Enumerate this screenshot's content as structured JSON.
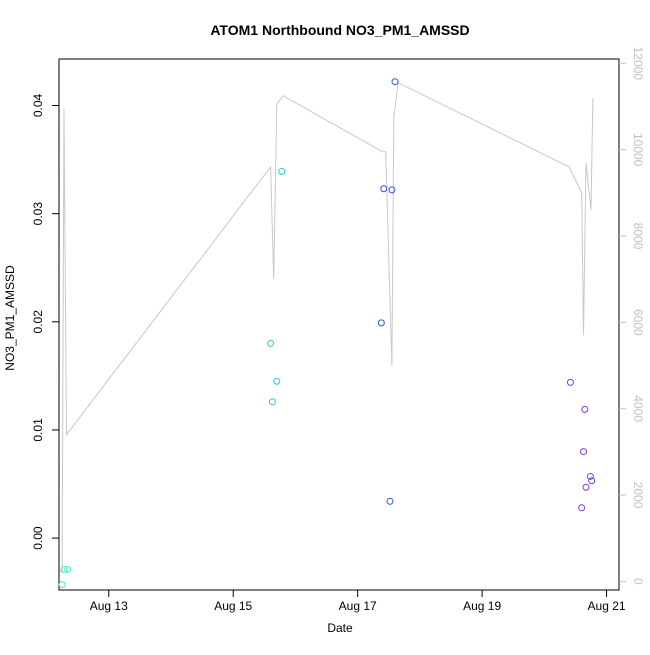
{
  "chart_data": {
    "type": "scatter",
    "title": "ATOM1 Northbound NO3_PM1_AMSSD",
    "xlabel": "Date",
    "ylabel": "NO3_PM1_AMSSD",
    "x_ticks": [
      "Aug 13",
      "Aug 15",
      "Aug 17",
      "Aug 19",
      "Aug 21"
    ],
    "x_tick_values": [
      13,
      15,
      17,
      19,
      21
    ],
    "xlim": [
      12.2,
      21.2
    ],
    "y_ticks": [
      "0.00",
      "0.01",
      "0.02",
      "0.03",
      "0.04"
    ],
    "y_tick_values": [
      0,
      0.01,
      0.02,
      0.03,
      0.04
    ],
    "ylim": [
      -0.0048,
      0.0443
    ],
    "y2_ticks": [
      "0",
      "2000",
      "4000",
      "6000",
      "8000",
      "10000",
      "12000"
    ],
    "y2_tick_values": [
      0,
      2000,
      4000,
      6000,
      8000,
      10000,
      12000
    ],
    "y2lim": [
      -200,
      12100
    ],
    "colors": {
      "line": "#c8c8c8",
      "axis": "#000000",
      "axis2": "#c0c0c0"
    },
    "series": [
      {
        "color": "#44e8c8",
        "points": [
          [
            12.25,
            -0.0043
          ],
          [
            12.28,
            -0.0029
          ],
          [
            12.34,
            -0.0029
          ]
        ]
      },
      {
        "color": "#28c8e8",
        "points": [
          [
            15.6,
            0.018
          ],
          [
            15.63,
            0.0126
          ],
          [
            15.7,
            0.0145
          ],
          [
            15.78,
            0.0339
          ]
        ]
      },
      {
        "color": "#2856e0",
        "points": [
          [
            17.38,
            0.0199
          ],
          [
            17.42,
            0.0323
          ],
          [
            17.52,
            0.0034
          ],
          [
            17.55,
            0.0322
          ],
          [
            17.6,
            0.0422
          ]
        ]
      },
      {
        "color": "#7a3ce0",
        "points": [
          [
            20.42,
            0.0144
          ],
          [
            20.6,
            0.0028
          ],
          [
            20.63,
            0.008
          ],
          [
            20.65,
            0.0119
          ],
          [
            20.67,
            0.0047
          ],
          [
            20.74,
            0.0057
          ],
          [
            20.76,
            0.0053
          ]
        ]
      }
    ],
    "line_series": {
      "points": [
        [
          12.25,
          200
        ],
        [
          12.28,
          10950
        ],
        [
          12.32,
          3400
        ],
        [
          15.6,
          9600
        ],
        [
          15.65,
          7000
        ],
        [
          15.7,
          11050
        ],
        [
          15.8,
          11250
        ],
        [
          17.4,
          9950
        ],
        [
          17.45,
          9950
        ],
        [
          17.55,
          5000
        ],
        [
          17.58,
          10750
        ],
        [
          17.65,
          11550
        ],
        [
          20.4,
          9600
        ],
        [
          20.6,
          9000
        ],
        [
          20.63,
          5700
        ],
        [
          20.67,
          9700
        ],
        [
          20.75,
          8600
        ],
        [
          20.78,
          11200
        ]
      ]
    }
  }
}
